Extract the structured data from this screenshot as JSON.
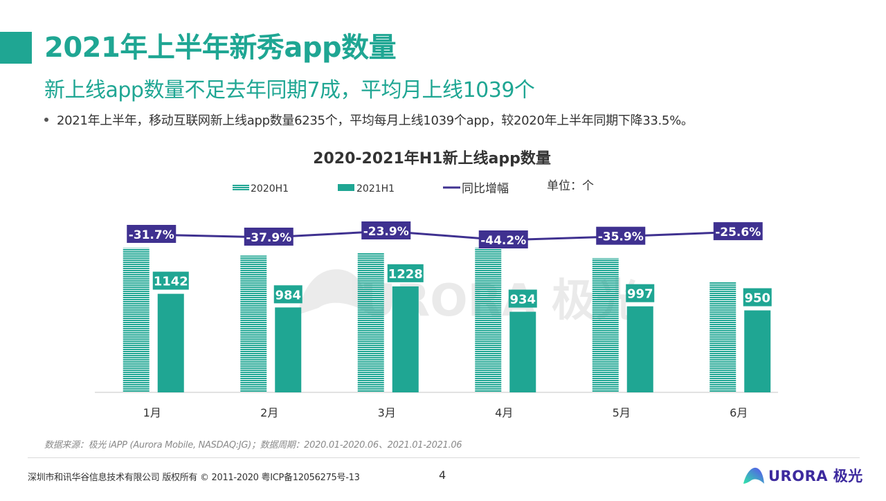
{
  "header": {
    "title": "2021年上半年新秀app数量",
    "subtitle": "新上线app数量不足去年同期7成，平均月上线1039个",
    "bullet": "2021年上半年，移动互联网新上线app数量6235个，平均每月上线1039个app，较2020年上半年同期下降33.5%。"
  },
  "colors": {
    "accent": "#1fa693",
    "line": "#3f3190",
    "text": "#333333"
  },
  "chart_data": {
    "type": "bar",
    "title": "2020-2021年H1新上线app数量",
    "unit_label": "单位：个",
    "categories": [
      "1月",
      "2月",
      "3月",
      "4月",
      "5月",
      "6月"
    ],
    "series": [
      {
        "name": "2020H1",
        "kind": "bar",
        "style": "striped",
        "values": [
          1672,
          1585,
          1614,
          1674,
          1555,
          1277
        ],
        "labels_shown": false
      },
      {
        "name": "2021H1",
        "kind": "bar",
        "style": "solid",
        "values": [
          1142,
          984,
          1228,
          934,
          997,
          950
        ],
        "labels_shown": true
      },
      {
        "name": "同比增幅",
        "kind": "line",
        "values": [
          -31.7,
          -37.9,
          -23.9,
          -44.2,
          -35.9,
          -25.6
        ],
        "labels": [
          "-31.7%",
          "-37.9%",
          "-23.9%",
          "-44.2%",
          "-35.9%",
          "-25.6%"
        ]
      }
    ],
    "legend": [
      "2020H1",
      "2021H1",
      "同比增幅"
    ],
    "legend_position": "top",
    "xlabel": "",
    "ylabel": "",
    "ylim": [
      0,
      1700
    ],
    "grid": false
  },
  "watermark": "URORA 极光",
  "footer": {
    "source": "数据来源：极光 iAPP (Aurora Mobile, NASDAQ:JG)；数据周期：2020.01-2020.06、2021.01-2021.06",
    "copyright": "深圳市和讯华谷信息技术有限公司  版权所有 © 2011-2020 粤ICP备12056275号-13",
    "page_number": "4",
    "logo_text": "URORA 极光"
  }
}
